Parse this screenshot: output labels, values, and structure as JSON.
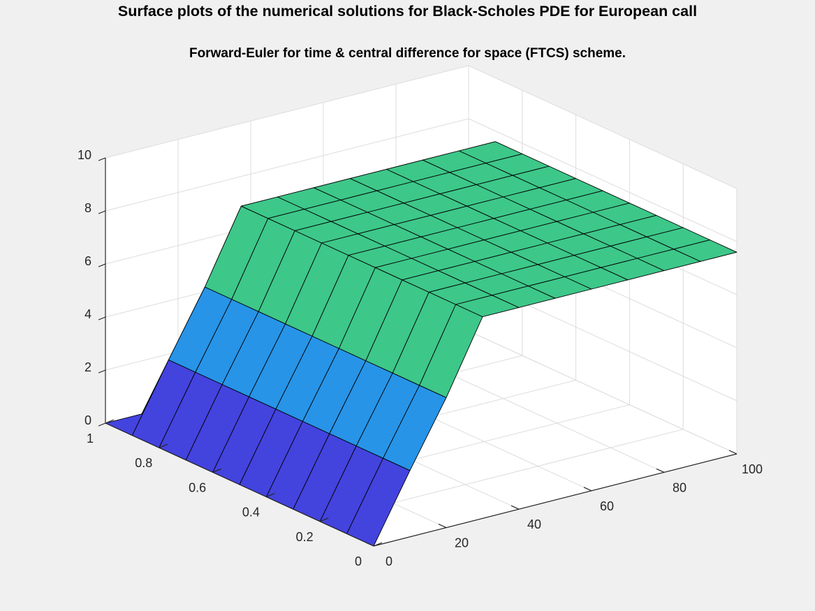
{
  "figure": {
    "title": "Surface plots of the numerical solutions for Black-Scholes PDE for European call",
    "subtitle": "Forward-Euler for time & central difference for space (FTCS) scheme."
  },
  "chart_data": {
    "type": "surface",
    "colormap": "winter-parula",
    "grid": true,
    "axes": {
      "x": {
        "range": [
          0,
          100
        ],
        "ticks": [
          0,
          20,
          40,
          60,
          80,
          100
        ]
      },
      "y": {
        "range": [
          0,
          1
        ],
        "ticks": [
          0,
          0.2,
          0.4,
          0.6,
          0.8,
          1
        ]
      },
      "z": {
        "range": [
          0,
          10
        ],
        "ticks": [
          0,
          2,
          4,
          6,
          8,
          10
        ]
      }
    },
    "x": [
      0,
      10,
      20,
      30,
      40,
      50,
      60,
      70,
      80,
      90,
      100
    ],
    "y": [
      0,
      0.1,
      0.2,
      0.3,
      0.4,
      0.5,
      0.6,
      0.7,
      0.8,
      0.9,
      1
    ],
    "z_profile_along_x": [
      0,
      2.5,
      4.9,
      7.6,
      7.6,
      7.6,
      7.6,
      7.6,
      7.6,
      7.6,
      7.6
    ],
    "z_at_y_max": 0
  }
}
